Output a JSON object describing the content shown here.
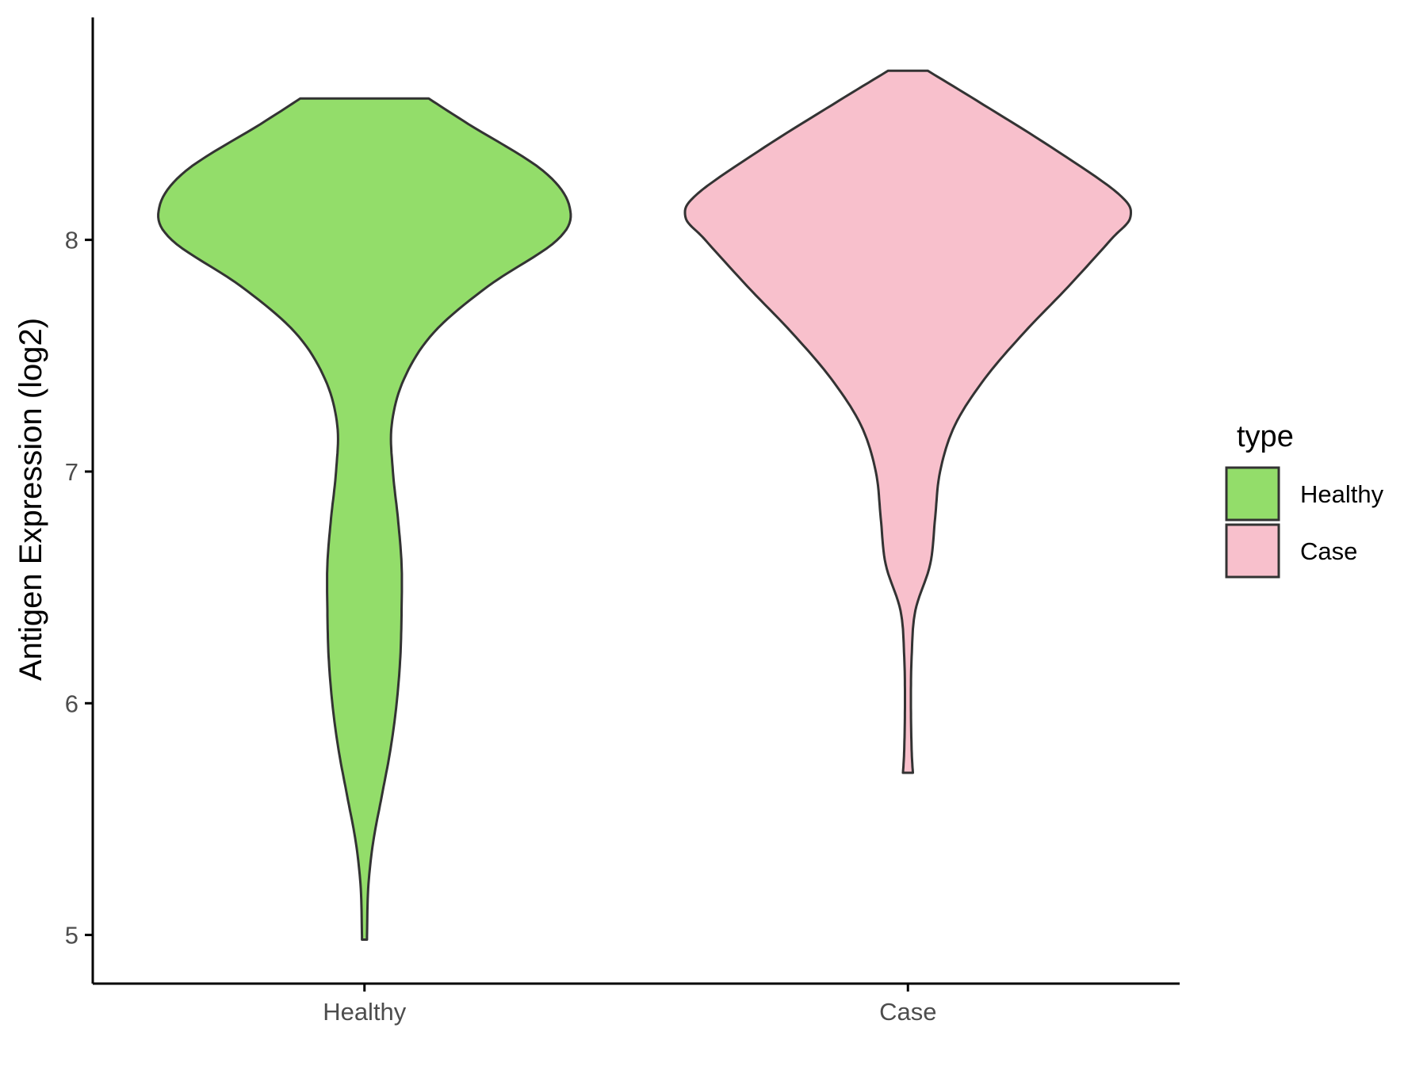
{
  "chart_data": {
    "type": "violin",
    "title": "",
    "xlabel": "",
    "ylabel": "Antigen Expression (log2)",
    "categories": [
      "Healthy",
      "Case"
    ],
    "yticks": [
      5,
      6,
      7,
      8
    ],
    "yticklabels": [
      "5",
      "6",
      "7",
      "8"
    ],
    "ylim": [
      4.79,
      8.96
    ],
    "grid": false,
    "legend": {
      "title": "type",
      "position": "right",
      "entries": [
        {
          "label": "Healthy",
          "color": "#93dd6a"
        },
        {
          "label": "Case",
          "color": "#f8c0cc"
        }
      ]
    },
    "series": [
      {
        "name": "Healthy",
        "color": "#93dd6a",
        "ymin": 4.98,
        "ymax": 8.61,
        "density_profile": [
          [
            4.98,
            0.01
          ],
          [
            5.2,
            0.015
          ],
          [
            5.4,
            0.035
          ],
          [
            5.6,
            0.07
          ],
          [
            5.8,
            0.105
          ],
          [
            6.0,
            0.13
          ],
          [
            6.2,
            0.145
          ],
          [
            6.4,
            0.15
          ],
          [
            6.6,
            0.15
          ],
          [
            6.8,
            0.135
          ],
          [
            7.0,
            0.115
          ],
          [
            7.2,
            0.11
          ],
          [
            7.4,
            0.16
          ],
          [
            7.6,
            0.28
          ],
          [
            7.8,
            0.5
          ],
          [
            8.0,
            0.78
          ],
          [
            8.14,
            0.83
          ],
          [
            8.3,
            0.72
          ],
          [
            8.5,
            0.42
          ],
          [
            8.61,
            0.26
          ]
        ]
      },
      {
        "name": "Case",
        "color": "#f8c0cc",
        "ymin": 5.7,
        "ymax": 8.73,
        "density_profile": [
          [
            5.7,
            0.02
          ],
          [
            5.8,
            0.015
          ],
          [
            6.0,
            0.012
          ],
          [
            6.2,
            0.015
          ],
          [
            6.4,
            0.03
          ],
          [
            6.6,
            0.09
          ],
          [
            6.8,
            0.11
          ],
          [
            7.0,
            0.13
          ],
          [
            7.2,
            0.19
          ],
          [
            7.4,
            0.31
          ],
          [
            7.6,
            0.47
          ],
          [
            7.8,
            0.65
          ],
          [
            8.0,
            0.82
          ],
          [
            8.1,
            0.9
          ],
          [
            8.2,
            0.85
          ],
          [
            8.4,
            0.58
          ],
          [
            8.6,
            0.28
          ],
          [
            8.73,
            0.08
          ]
        ]
      }
    ]
  }
}
